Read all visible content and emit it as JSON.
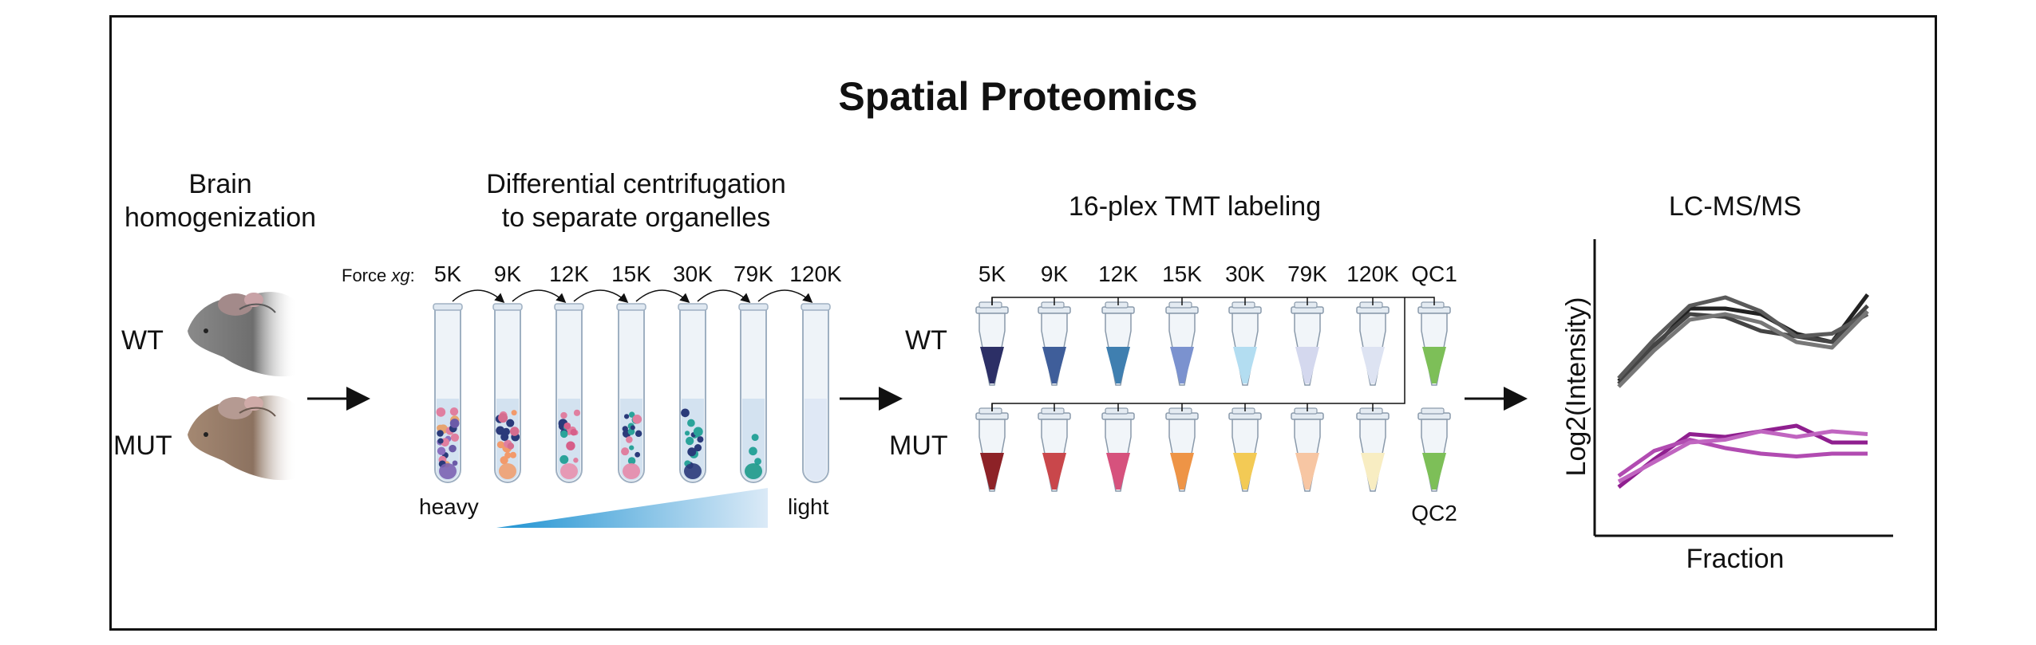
{
  "title": "Spatial Proteomics",
  "sections": {
    "homogenization": "Brain\nhomogenization",
    "centrifugation": "Differential centrifugation\nto separate organelles",
    "tmt": "16-plex TMT labeling",
    "lcms": "LC-MS/MS"
  },
  "groups": {
    "wt": "WT",
    "mut": "MUT"
  },
  "force_label": "Force xg:",
  "centrifuge_speeds": [
    "5K",
    "9K",
    "12K",
    "15K",
    "30K",
    "79K",
    "120K"
  ],
  "gradient": {
    "heavy": "heavy",
    "light": "light"
  },
  "tmt_fractions": [
    "5K",
    "9K",
    "12K",
    "15K",
    "30K",
    "79K",
    "120K",
    "QC1"
  ],
  "qc2_label": "QC2",
  "colors": {
    "wt_tubes": [
      "#2c2f66",
      "#3f5e9a",
      "#3f7fb0",
      "#7b92cf",
      "#b3ddf1",
      "#d4d8ee",
      "#dde3f2",
      "#7dbf58"
    ],
    "mut_tubes": [
      "#8d2227",
      "#c9474b",
      "#d6527d",
      "#ee9446",
      "#f3ca55",
      "#f7c6a3",
      "#f8edc2",
      "#7dbf58"
    ],
    "gradient_start": "#1f93d2",
    "gradient_end": "#dbeaf7",
    "wt_lines": "#333333",
    "mut_lines": "#a02fa0"
  },
  "chart_data": {
    "type": "line",
    "title": "LC-MS/MS",
    "xlabel": "Fraction",
    "ylabel": "Log2(Intensity)",
    "x": [
      1,
      2,
      3,
      4,
      5,
      6,
      7,
      8
    ],
    "ylim": [
      0,
      10
    ],
    "grid": false,
    "series": [
      {
        "group": "WT",
        "color": "#222222",
        "values": [
          5.2,
          6.4,
          7.8,
          7.8,
          7.6,
          6.9,
          6.6,
          8.3
        ]
      },
      {
        "group": "WT",
        "color": "#444444",
        "values": [
          5.1,
          6.5,
          7.6,
          7.5,
          7.0,
          6.8,
          6.6,
          7.9
        ]
      },
      {
        "group": "WT",
        "color": "#5a5a5a",
        "values": [
          5.3,
          6.7,
          7.9,
          8.2,
          7.7,
          6.8,
          6.9,
          7.6
        ]
      },
      {
        "group": "WT",
        "color": "#777777",
        "values": [
          5.0,
          6.3,
          7.4,
          7.6,
          7.3,
          6.6,
          6.4,
          7.7
        ]
      },
      {
        "group": "MUT",
        "color": "#8f1f8f",
        "values": [
          1.4,
          2.4,
          3.3,
          3.2,
          3.4,
          3.6,
          3.0,
          3.0
        ]
      },
      {
        "group": "MUT",
        "color": "#b14bb1",
        "values": [
          1.8,
          2.7,
          3.1,
          2.8,
          2.6,
          2.5,
          2.6,
          2.6
        ]
      },
      {
        "group": "MUT",
        "color": "#c065c0",
        "values": [
          1.6,
          2.3,
          3.0,
          3.1,
          3.4,
          3.2,
          3.4,
          3.3
        ]
      }
    ]
  }
}
